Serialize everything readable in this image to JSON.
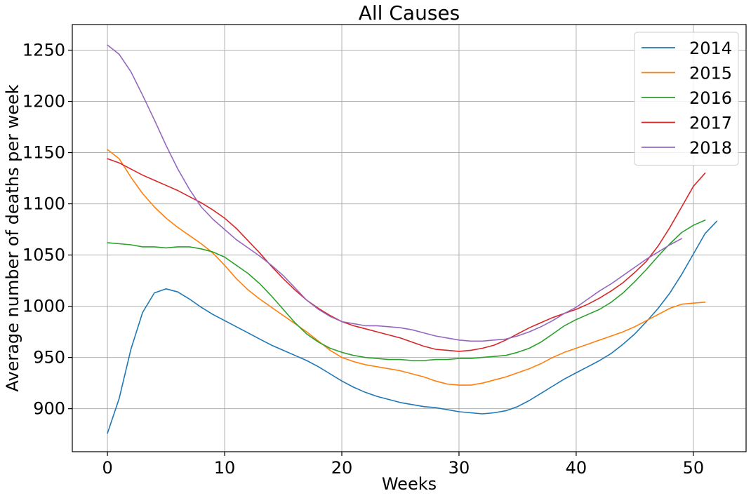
{
  "chart_data": {
    "type": "line",
    "title": "All Causes",
    "xlabel": "Weeks",
    "ylabel": "Average number of deaths per week",
    "xlim": [
      -3,
      54.5
    ],
    "ylim": [
      858,
      1275
    ],
    "xticks": [
      0,
      10,
      20,
      30,
      40,
      50
    ],
    "yticks": [
      900,
      950,
      1000,
      1050,
      1100,
      1150,
      1200,
      1250
    ],
    "grid": true,
    "legend_position": "top-right",
    "series": [
      {
        "name": "2014",
        "color": "#1f77b4",
        "x": [
          0,
          1,
          2,
          3,
          4,
          5,
          6,
          7,
          8,
          9,
          10,
          11,
          12,
          13,
          14,
          15,
          16,
          17,
          18,
          19,
          20,
          21,
          22,
          23,
          24,
          25,
          26,
          27,
          28,
          29,
          30,
          31,
          32,
          33,
          34,
          35,
          36,
          37,
          38,
          39,
          40,
          41,
          42,
          43,
          44,
          45,
          46,
          47,
          48,
          49,
          50,
          51,
          52
        ],
        "values": [
          876,
          910,
          958,
          994,
          1013,
          1017,
          1014,
          1007,
          999,
          992,
          986,
          980,
          974,
          968,
          962,
          957,
          952,
          947,
          941,
          934,
          927,
          921,
          916,
          912,
          909,
          906,
          904,
          902,
          901,
          899,
          897,
          896,
          895,
          896,
          898,
          902,
          908,
          915,
          922,
          929,
          935,
          941,
          947,
          954,
          963,
          973,
          985,
          998,
          1013,
          1031,
          1051,
          1071,
          1083
        ]
      },
      {
        "name": "2015",
        "color": "#ff7f0e",
        "x": [
          0,
          1,
          2,
          3,
          4,
          5,
          6,
          7,
          8,
          9,
          10,
          11,
          12,
          13,
          14,
          15,
          16,
          17,
          18,
          19,
          20,
          21,
          22,
          23,
          24,
          25,
          26,
          27,
          28,
          29,
          30,
          31,
          32,
          33,
          34,
          35,
          36,
          37,
          38,
          39,
          40,
          41,
          42,
          43,
          44,
          45,
          46,
          47,
          48,
          49,
          50,
          51
        ],
        "values": [
          1153,
          1144,
          1126,
          1110,
          1097,
          1086,
          1077,
          1069,
          1061,
          1052,
          1040,
          1027,
          1016,
          1007,
          999,
          991,
          983,
          975,
          966,
          957,
          950,
          946,
          943,
          941,
          939,
          937,
          934,
          931,
          927,
          924,
          923,
          923,
          925,
          928,
          931,
          935,
          939,
          944,
          950,
          955,
          959,
          963,
          967,
          971,
          975,
          980,
          986,
          992,
          998,
          1002,
          1003,
          1004
        ]
      },
      {
        "name": "2016",
        "color": "#2ca02c",
        "x": [
          0,
          1,
          2,
          3,
          4,
          5,
          6,
          7,
          8,
          9,
          10,
          11,
          12,
          13,
          14,
          15,
          16,
          17,
          18,
          19,
          20,
          21,
          22,
          23,
          24,
          25,
          26,
          27,
          28,
          29,
          30,
          31,
          32,
          33,
          34,
          35,
          36,
          37,
          38,
          39,
          40,
          41,
          42,
          43,
          44,
          45,
          46,
          47,
          48,
          49,
          50,
          51
        ],
        "values": [
          1062,
          1061,
          1060,
          1058,
          1058,
          1057,
          1058,
          1058,
          1056,
          1053,
          1048,
          1040,
          1032,
          1022,
          1010,
          997,
          984,
          973,
          965,
          959,
          955,
          952,
          950,
          949,
          948,
          948,
          947,
          947,
          948,
          948,
          949,
          949,
          950,
          951,
          952,
          955,
          959,
          965,
          973,
          981,
          987,
          992,
          997,
          1004,
          1013,
          1024,
          1036,
          1049,
          1061,
          1072,
          1079,
          1084
        ]
      },
      {
        "name": "2017",
        "color": "#d62728",
        "x": [
          0,
          1,
          2,
          3,
          4,
          5,
          6,
          7,
          8,
          9,
          10,
          11,
          12,
          13,
          14,
          15,
          16,
          17,
          18,
          19,
          20,
          21,
          22,
          23,
          24,
          25,
          26,
          27,
          28,
          29,
          30,
          31,
          32,
          33,
          34,
          35,
          36,
          37,
          38,
          39,
          40,
          41,
          42,
          43,
          44,
          45,
          46,
          47,
          48,
          49,
          50,
          51
        ],
        "values": [
          1144,
          1140,
          1134,
          1128,
          1123,
          1118,
          1113,
          1107,
          1101,
          1094,
          1086,
          1076,
          1064,
          1052,
          1039,
          1027,
          1016,
          1006,
          998,
          991,
          985,
          981,
          978,
          975,
          972,
          969,
          965,
          961,
          958,
          957,
          956,
          957,
          959,
          962,
          967,
          973,
          979,
          984,
          989,
          993,
          997,
          1002,
          1008,
          1015,
          1023,
          1033,
          1044,
          1059,
          1077,
          1097,
          1117,
          1130
        ]
      },
      {
        "name": "2018",
        "color": "#9467bd",
        "x": [
          0,
          1,
          2,
          3,
          4,
          5,
          6,
          7,
          8,
          9,
          10,
          11,
          12,
          13,
          14,
          15,
          16,
          17,
          18,
          19,
          20,
          21,
          22,
          23,
          24,
          25,
          26,
          27,
          28,
          29,
          30,
          31,
          32,
          33,
          34,
          35,
          36,
          37,
          38,
          39,
          40,
          41,
          42,
          43,
          44,
          45,
          46,
          47,
          48,
          49
        ],
        "values": [
          1255,
          1246,
          1229,
          1206,
          1182,
          1157,
          1134,
          1114,
          1097,
          1085,
          1075,
          1065,
          1057,
          1049,
          1040,
          1030,
          1018,
          1006,
          997,
          990,
          985,
          983,
          981,
          981,
          980,
          979,
          977,
          974,
          971,
          969,
          967,
          966,
          966,
          967,
          968,
          971,
          975,
          980,
          986,
          993,
          999,
          1007,
          1015,
          1022,
          1030,
          1038,
          1046,
          1053,
          1060,
          1066
        ]
      }
    ]
  }
}
